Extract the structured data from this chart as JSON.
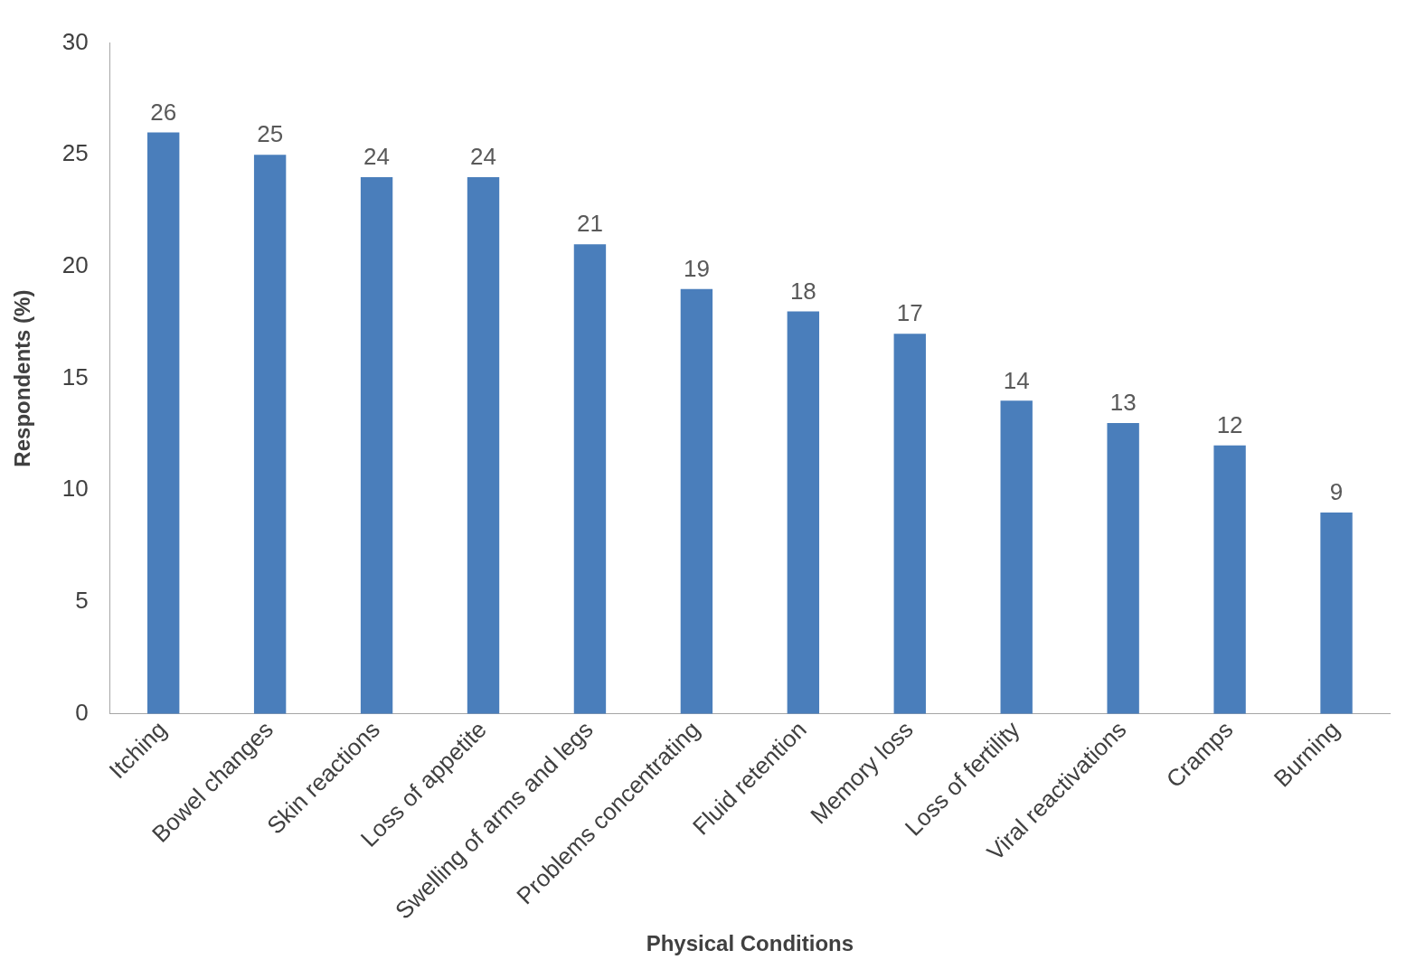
{
  "chart_data": {
    "type": "bar",
    "xlabel": "Physical Conditions",
    "ylabel": "Respondents (%)",
    "categories": [
      "Itching",
      "Bowel changes",
      "Skin reactions",
      "Loss of appetite",
      "Swelling of arms and legs",
      "Problems concentrating",
      "Fluid retention",
      "Memory loss",
      "Loss of fertility",
      "Viral reactivations",
      "Cramps",
      "Burning"
    ],
    "values": [
      26,
      25,
      24,
      24,
      21,
      19,
      18,
      17,
      14,
      13,
      12,
      9
    ],
    "color": "#4a7ebb",
    "ylim": [
      0,
      30
    ],
    "yticks": [
      0,
      5,
      10,
      15,
      20,
      25,
      30
    ],
    "grid": false,
    "legend": false,
    "data_labels": true
  }
}
